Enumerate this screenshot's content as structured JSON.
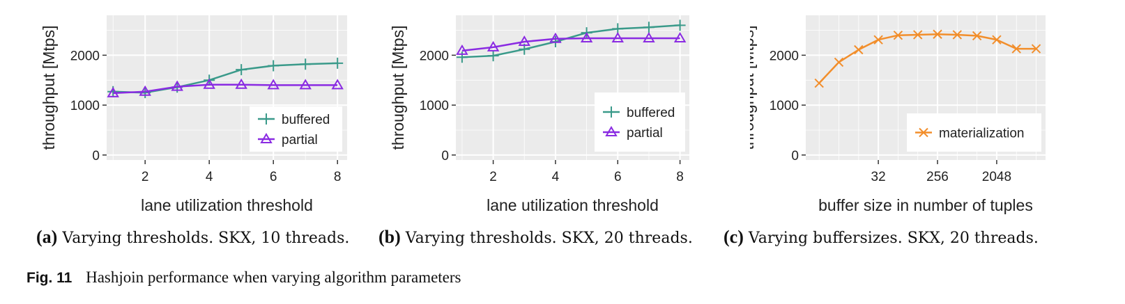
{
  "colors": {
    "panel_bg": "#ebebeb",
    "grid": "#ffffff",
    "buffered": "#3a9a8a",
    "partial": "#8a2be2",
    "materialization": "#f28e2b"
  },
  "captions": {
    "a": {
      "label": "(a)",
      "text": "Varying thresholds. SKX, 10 threads."
    },
    "b": {
      "label": "(b)",
      "text": "Varying thresholds. SKX, 20 threads."
    },
    "c": {
      "label": "(c)",
      "text": "Varying buffersizes. SKX, 20 threads."
    }
  },
  "figure": {
    "label": "Fig. 11",
    "text": "Hashjoin performance when varying algorithm parameters"
  },
  "chart_data": [
    {
      "type": "line",
      "xlabel": "lane utilization threshold",
      "ylabel": "throughput [Mtps]",
      "xlim": [
        0.8,
        8.3
      ],
      "ylim": [
        -100,
        2800
      ],
      "x_ticks": [
        2,
        4,
        6,
        8
      ],
      "y_ticks": [
        0,
        1000,
        2000
      ],
      "grid": true,
      "legend_position": "bottom-right",
      "x": [
        1,
        2,
        3,
        4,
        5,
        6,
        7,
        8
      ],
      "series": [
        {
          "name": "buffered",
          "marker": "plus",
          "values": [
            1270,
            1250,
            1360,
            1500,
            1710,
            1790,
            1820,
            1840
          ]
        },
        {
          "name": "partial",
          "marker": "triangle",
          "values": [
            1240,
            1270,
            1370,
            1410,
            1410,
            1400,
            1400,
            1400
          ]
        }
      ]
    },
    {
      "type": "line",
      "xlabel": "lane utilization threshold",
      "ylabel": "throughput [Mtps]",
      "xlim": [
        0.8,
        8.3
      ],
      "ylim": [
        -100,
        2800
      ],
      "x_ticks": [
        2,
        4,
        6,
        8
      ],
      "y_ticks": [
        0,
        1000,
        2000
      ],
      "grid": true,
      "legend_position": "bottom-right",
      "x": [
        1,
        2,
        3,
        4,
        5,
        6,
        7,
        8
      ],
      "series": [
        {
          "name": "buffered",
          "marker": "plus",
          "values": [
            1960,
            1990,
            2120,
            2270,
            2450,
            2530,
            2560,
            2600
          ]
        },
        {
          "name": "partial",
          "marker": "triangle",
          "values": [
            2090,
            2160,
            2270,
            2330,
            2340,
            2340,
            2340,
            2340
          ]
        }
      ]
    },
    {
      "type": "line",
      "xlabel": "buffer size in number of tuples",
      "ylabel": "throughput [Mtps]",
      "x_scale": "log2",
      "xlim": [
        2.5,
        11390
      ],
      "ylim": [
        -100,
        2800
      ],
      "x_ticks": [
        32,
        256,
        2048
      ],
      "y_ticks": [
        0,
        1000,
        2000
      ],
      "grid": true,
      "legend_position": "bottom-right",
      "x": [
        4,
        8,
        16,
        32,
        64,
        128,
        256,
        512,
        1024,
        2048,
        4096,
        8192
      ],
      "series": [
        {
          "name": "materialization",
          "marker": "x",
          "values": [
            1440,
            1860,
            2110,
            2310,
            2400,
            2410,
            2420,
            2410,
            2390,
            2310,
            2130,
            2130
          ]
        }
      ]
    }
  ]
}
